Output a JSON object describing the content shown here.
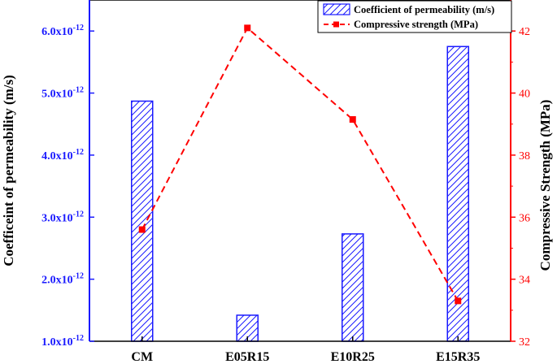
{
  "chart_data": {
    "type": "bar",
    "categories": [
      "CM",
      "E05R15",
      "E10R25",
      "E15R35"
    ],
    "series": [
      {
        "name": "Coefficient of permeability (m/s)",
        "type": "bar",
        "axis": "left",
        "values": [
          4.87e-12,
          1.42e-12,
          2.73e-12,
          5.75e-12
        ],
        "color": "#1a1aff",
        "pattern": "diagonal-hatch"
      },
      {
        "name": "Compressive strength (MPa)",
        "type": "line",
        "axis": "right",
        "values": [
          35.6,
          42.1,
          39.15,
          33.3
        ],
        "color": "#ff0000",
        "line_style": "dashed",
        "marker": "square"
      }
    ],
    "left_axis": {
      "label": "Coefficeint of permeability (m/s)",
      "ylim": [
        1e-12,
        6.5e-12
      ],
      "ticks": [
        {
          "value": 1e-12,
          "mantissa": "1.0x10",
          "exponent": "-12"
        },
        {
          "value": 2e-12,
          "mantissa": "2.0x10",
          "exponent": "-12"
        },
        {
          "value": 3e-12,
          "mantissa": "3.0x10",
          "exponent": "-12"
        },
        {
          "value": 4e-12,
          "mantissa": "4.0x10",
          "exponent": "-12"
        },
        {
          "value": 5e-12,
          "mantissa": "5.0x10",
          "exponent": "-12"
        },
        {
          "value": 6e-12,
          "mantissa": "6.0x10",
          "exponent": "-12"
        }
      ],
      "color": "#1a1aff"
    },
    "right_axis": {
      "label": "Compressive Strength (MPa)",
      "ylim": [
        32,
        43
      ],
      "ticks": [
        32,
        34,
        36,
        38,
        40,
        42
      ],
      "color": "#ff0000"
    },
    "legend": {
      "position": "top-right",
      "entries": [
        "Coefficient of permeability (m/s)",
        "Compressive strength (MPa)"
      ]
    },
    "grid": false
  }
}
